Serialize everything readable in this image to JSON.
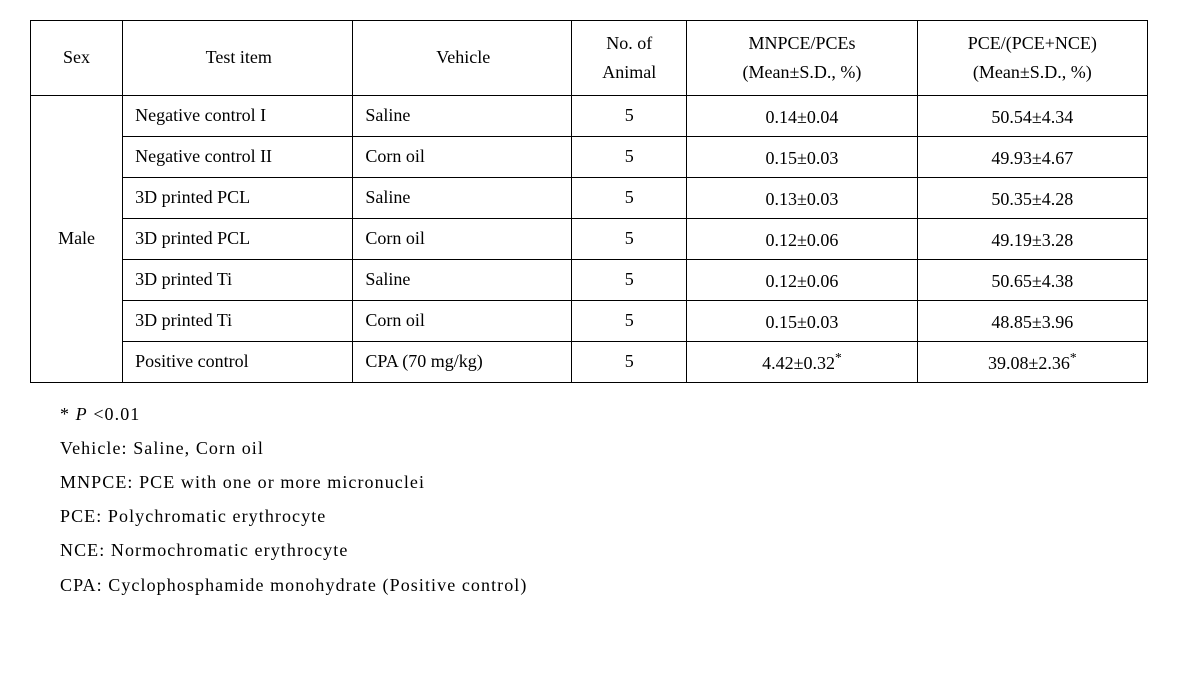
{
  "table": {
    "columns": {
      "sex": "Sex",
      "test_item": "Test item",
      "vehicle": "Vehicle",
      "no_animal_line1": "No. of",
      "no_animal_line2": "Animal",
      "mnpce_line1": "MNPCE/PCEs",
      "mnpce_line2": "(Mean±S.D., %)",
      "pce_line1": "PCE/(PCE+NCE)",
      "pce_line2": "(Mean±S.D., %)"
    },
    "sex_value": "Male",
    "rows": [
      {
        "item": "Negative control I",
        "vehicle": "Saline",
        "n": "5",
        "mn": "0.14±0.04",
        "mn_sup": "",
        "pce": "50.54±4.34",
        "pce_sup": ""
      },
      {
        "item": "Negative control II",
        "vehicle": "Corn oil",
        "n": "5",
        "mn": "0.15±0.03",
        "mn_sup": "",
        "pce": "49.93±4.67",
        "pce_sup": ""
      },
      {
        "item": "3D printed PCL",
        "vehicle": "Saline",
        "n": "5",
        "mn": "0.13±0.03",
        "mn_sup": "",
        "pce": "50.35±4.28",
        "pce_sup": ""
      },
      {
        "item": "3D printed PCL",
        "vehicle": "Corn oil",
        "n": "5",
        "mn": "0.12±0.06",
        "mn_sup": "",
        "pce": "49.19±3.28",
        "pce_sup": ""
      },
      {
        "item": "3D printed Ti",
        "vehicle": "Saline",
        "n": "5",
        "mn": "0.12±0.06",
        "mn_sup": "",
        "pce": "50.65±4.38",
        "pce_sup": ""
      },
      {
        "item": "3D printed Ti",
        "vehicle": "Corn oil",
        "n": "5",
        "mn": "0.15±0.03",
        "mn_sup": "",
        "pce": "48.85±3.96",
        "pce_sup": ""
      },
      {
        "item": "Positive control",
        "vehicle": "CPA (70 mg/kg)",
        "n": "5",
        "mn": "4.42±0.32",
        "mn_sup": "*",
        "pce": "39.08±2.36",
        "pce_sup": "*"
      }
    ]
  },
  "notes": {
    "p_prefix": "* ",
    "p_symbol": "P",
    "p_rest": " <0.01",
    "vehicle": "Vehicle: Saline, Corn oil",
    "mnpce": "MNPCE: PCE with one or more micronuclei",
    "pce": "PCE: Polychromatic erythrocyte",
    "nce": "NCE: Normochromatic erythrocyte",
    "cpa": "CPA: Cyclophosphamide monohydrate (Positive control)"
  }
}
